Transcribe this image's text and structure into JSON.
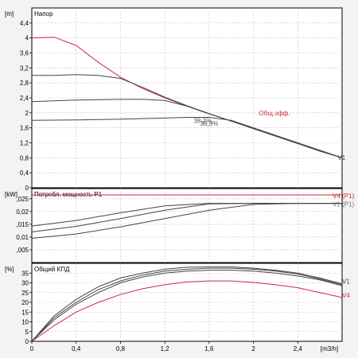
{
  "chart_data": [
    {
      "type": "line",
      "panel": "head",
      "title": "Напор",
      "unit_label": "[m]",
      "ylim": [
        0,
        4.8
      ],
      "yticks": [
        "0",
        "0,4",
        "0,8",
        "1,2",
        "1,6",
        "2",
        "2,4",
        "2,8",
        "3,2",
        "3,6",
        "4",
        "4,4"
      ],
      "series": [
        {
          "name": "",
          "color": "#cc2b3b",
          "x": [
            0,
            0.2,
            0.4,
            0.6,
            0.8,
            1.0,
            1.2,
            1.4,
            1.6,
            1.8,
            2.0,
            2.2,
            2.4,
            2.6,
            2.8
          ],
          "y": [
            4.0,
            4.02,
            3.8,
            3.35,
            2.95,
            2.65,
            2.4,
            2.18,
            1.97,
            1.78,
            1.58,
            1.38,
            1.18,
            0.98,
            0.8
          ]
        },
        {
          "name": "",
          "color": "#444444",
          "x": [
            0,
            0.2,
            0.4,
            0.6,
            0.8,
            1.0,
            1.2,
            1.4,
            1.6,
            1.8,
            2.0,
            2.2,
            2.4,
            2.6,
            2.8
          ],
          "y": [
            3.0,
            3.0,
            3.02,
            3.0,
            2.92,
            2.68,
            2.42,
            2.19,
            1.98,
            1.78,
            1.58,
            1.38,
            1.18,
            0.98,
            0.8
          ]
        },
        {
          "name": "",
          "color": "#444444",
          "x": [
            0,
            0.4,
            0.8,
            1.0,
            1.2,
            1.4,
            1.6,
            1.8,
            2.0,
            2.2,
            2.4,
            2.6,
            2.8
          ],
          "y": [
            2.3,
            2.34,
            2.36,
            2.36,
            2.33,
            2.18,
            1.98,
            1.78,
            1.58,
            1.38,
            1.18,
            0.98,
            0.8
          ]
        },
        {
          "name": "",
          "color": "#444444",
          "x": [
            0,
            0.4,
            0.8,
            1.2,
            1.4,
            1.6,
            1.8,
            2.0,
            2.2,
            2.4,
            2.6,
            2.8
          ],
          "y": [
            1.8,
            1.81,
            1.83,
            1.86,
            1.88,
            1.88,
            1.8,
            1.6,
            1.4,
            1.2,
            1.0,
            0.8
          ]
        }
      ],
      "annotations": [
        {
          "text": "38,2%",
          "x": 1.46,
          "y": 1.73,
          "color": "#555555"
        },
        {
          "text": "36,9%",
          "x": 1.52,
          "y": 1.66,
          "color": "#555555"
        },
        {
          "text": "Общ.эфф.",
          "x": 2.05,
          "y": 1.93,
          "color": "#cc2b3b"
        },
        {
          "text": "V1",
          "x": 2.76,
          "y": 0.74,
          "color": "#444444"
        }
      ]
    },
    {
      "type": "line",
      "panel": "power",
      "title": "Потребл. мощность P1",
      "unit_label": "[kW]",
      "ylim": [
        0,
        0.029
      ],
      "yticks": [
        ",005",
        "0,01",
        ",015",
        "0,02",
        ",025"
      ],
      "series": [
        {
          "name": "V4 (P1)",
          "color": "#cc2b3b",
          "x": [
            0,
            2.8
          ],
          "y": [
            0.0265,
            0.0265
          ]
        },
        {
          "name": "V1 (P1)",
          "color": "#444444",
          "x": [
            0,
            0.4,
            0.8,
            1.2,
            1.6,
            2.0,
            2.4,
            2.8
          ],
          "y": [
            0.0143,
            0.0165,
            0.0195,
            0.0222,
            0.0232,
            0.0232,
            0.0232,
            0.0232
          ]
        },
        {
          "name": "",
          "color": "#444444",
          "x": [
            0,
            0.4,
            0.8,
            1.2,
            1.6,
            2.0,
            2.4,
            2.8
          ],
          "y": [
            0.012,
            0.0142,
            0.0172,
            0.0205,
            0.023,
            0.0232,
            0.0232,
            0.0232
          ]
        },
        {
          "name": "",
          "color": "#444444",
          "x": [
            0,
            0.4,
            0.8,
            1.2,
            1.6,
            2.0,
            2.4,
            2.8
          ],
          "y": [
            0.0095,
            0.0112,
            0.014,
            0.0172,
            0.0205,
            0.0228,
            0.0232,
            0.0232
          ]
        }
      ]
    },
    {
      "type": "line",
      "panel": "efficiency",
      "title": "Общий КПД",
      "unit_label": "[%]",
      "ylim": [
        0,
        40
      ],
      "yticks": [
        "0",
        "5",
        "10",
        "15",
        "20",
        "25",
        "30",
        "35"
      ],
      "xticks": [
        "0",
        "0,4",
        "0,8",
        "1,2",
        "1,6",
        "2",
        "2,4"
      ],
      "xlabel": "[m3/h]",
      "series": [
        {
          "name": "",
          "color": "#cc2b3b",
          "x": [
            0,
            0.2,
            0.4,
            0.6,
            0.8,
            1.0,
            1.2,
            1.4,
            1.6,
            1.8,
            2.0,
            2.2,
            2.4,
            2.6,
            2.8
          ],
          "y": [
            0,
            8,
            15,
            20,
            24,
            27,
            29,
            30.5,
            31,
            31,
            30.2,
            29,
            27.5,
            25,
            22.5
          ]
        },
        {
          "name": "",
          "color": "#444444",
          "x": [
            0,
            0.2,
            0.4,
            0.6,
            0.8,
            1.0,
            1.2,
            1.4,
            1.6,
            1.8,
            2.0,
            2.2,
            2.4,
            2.6,
            2.8
          ],
          "y": [
            0,
            11,
            19,
            25,
            30,
            33,
            35,
            36,
            36.5,
            36.5,
            36,
            35,
            33.5,
            31.5,
            28.5
          ]
        },
        {
          "name": "",
          "color": "#444444",
          "x": [
            0,
            0.2,
            0.4,
            0.6,
            0.8,
            1.0,
            1.2,
            1.4,
            1.6,
            1.8,
            2.0,
            2.2,
            2.4,
            2.6,
            2.8
          ],
          "y": [
            0,
            12,
            20,
            26.5,
            31,
            34,
            36,
            37,
            37.5,
            37.5,
            37,
            36,
            34.5,
            32,
            29
          ]
        },
        {
          "name": "",
          "color": "#444444",
          "x": [
            0,
            0.2,
            0.4,
            0.6,
            0.8,
            1.0,
            1.2,
            1.4,
            1.6,
            1.8,
            2.0,
            2.2,
            2.4,
            2.6,
            2.8
          ],
          "y": [
            0,
            13,
            21.5,
            28,
            32.5,
            35,
            37,
            38,
            38.2,
            38.2,
            37.5,
            36.5,
            35,
            32.5,
            29.5
          ]
        }
      ],
      "annotations": [
        {
          "text": "V1",
          "x": 2.8,
          "y": 29.5,
          "color": "#444444"
        },
        {
          "text": "V4",
          "x": 2.8,
          "y": 22.5,
          "color": "#cc2b3b"
        }
      ]
    }
  ],
  "xlim": [
    0,
    2.8
  ]
}
